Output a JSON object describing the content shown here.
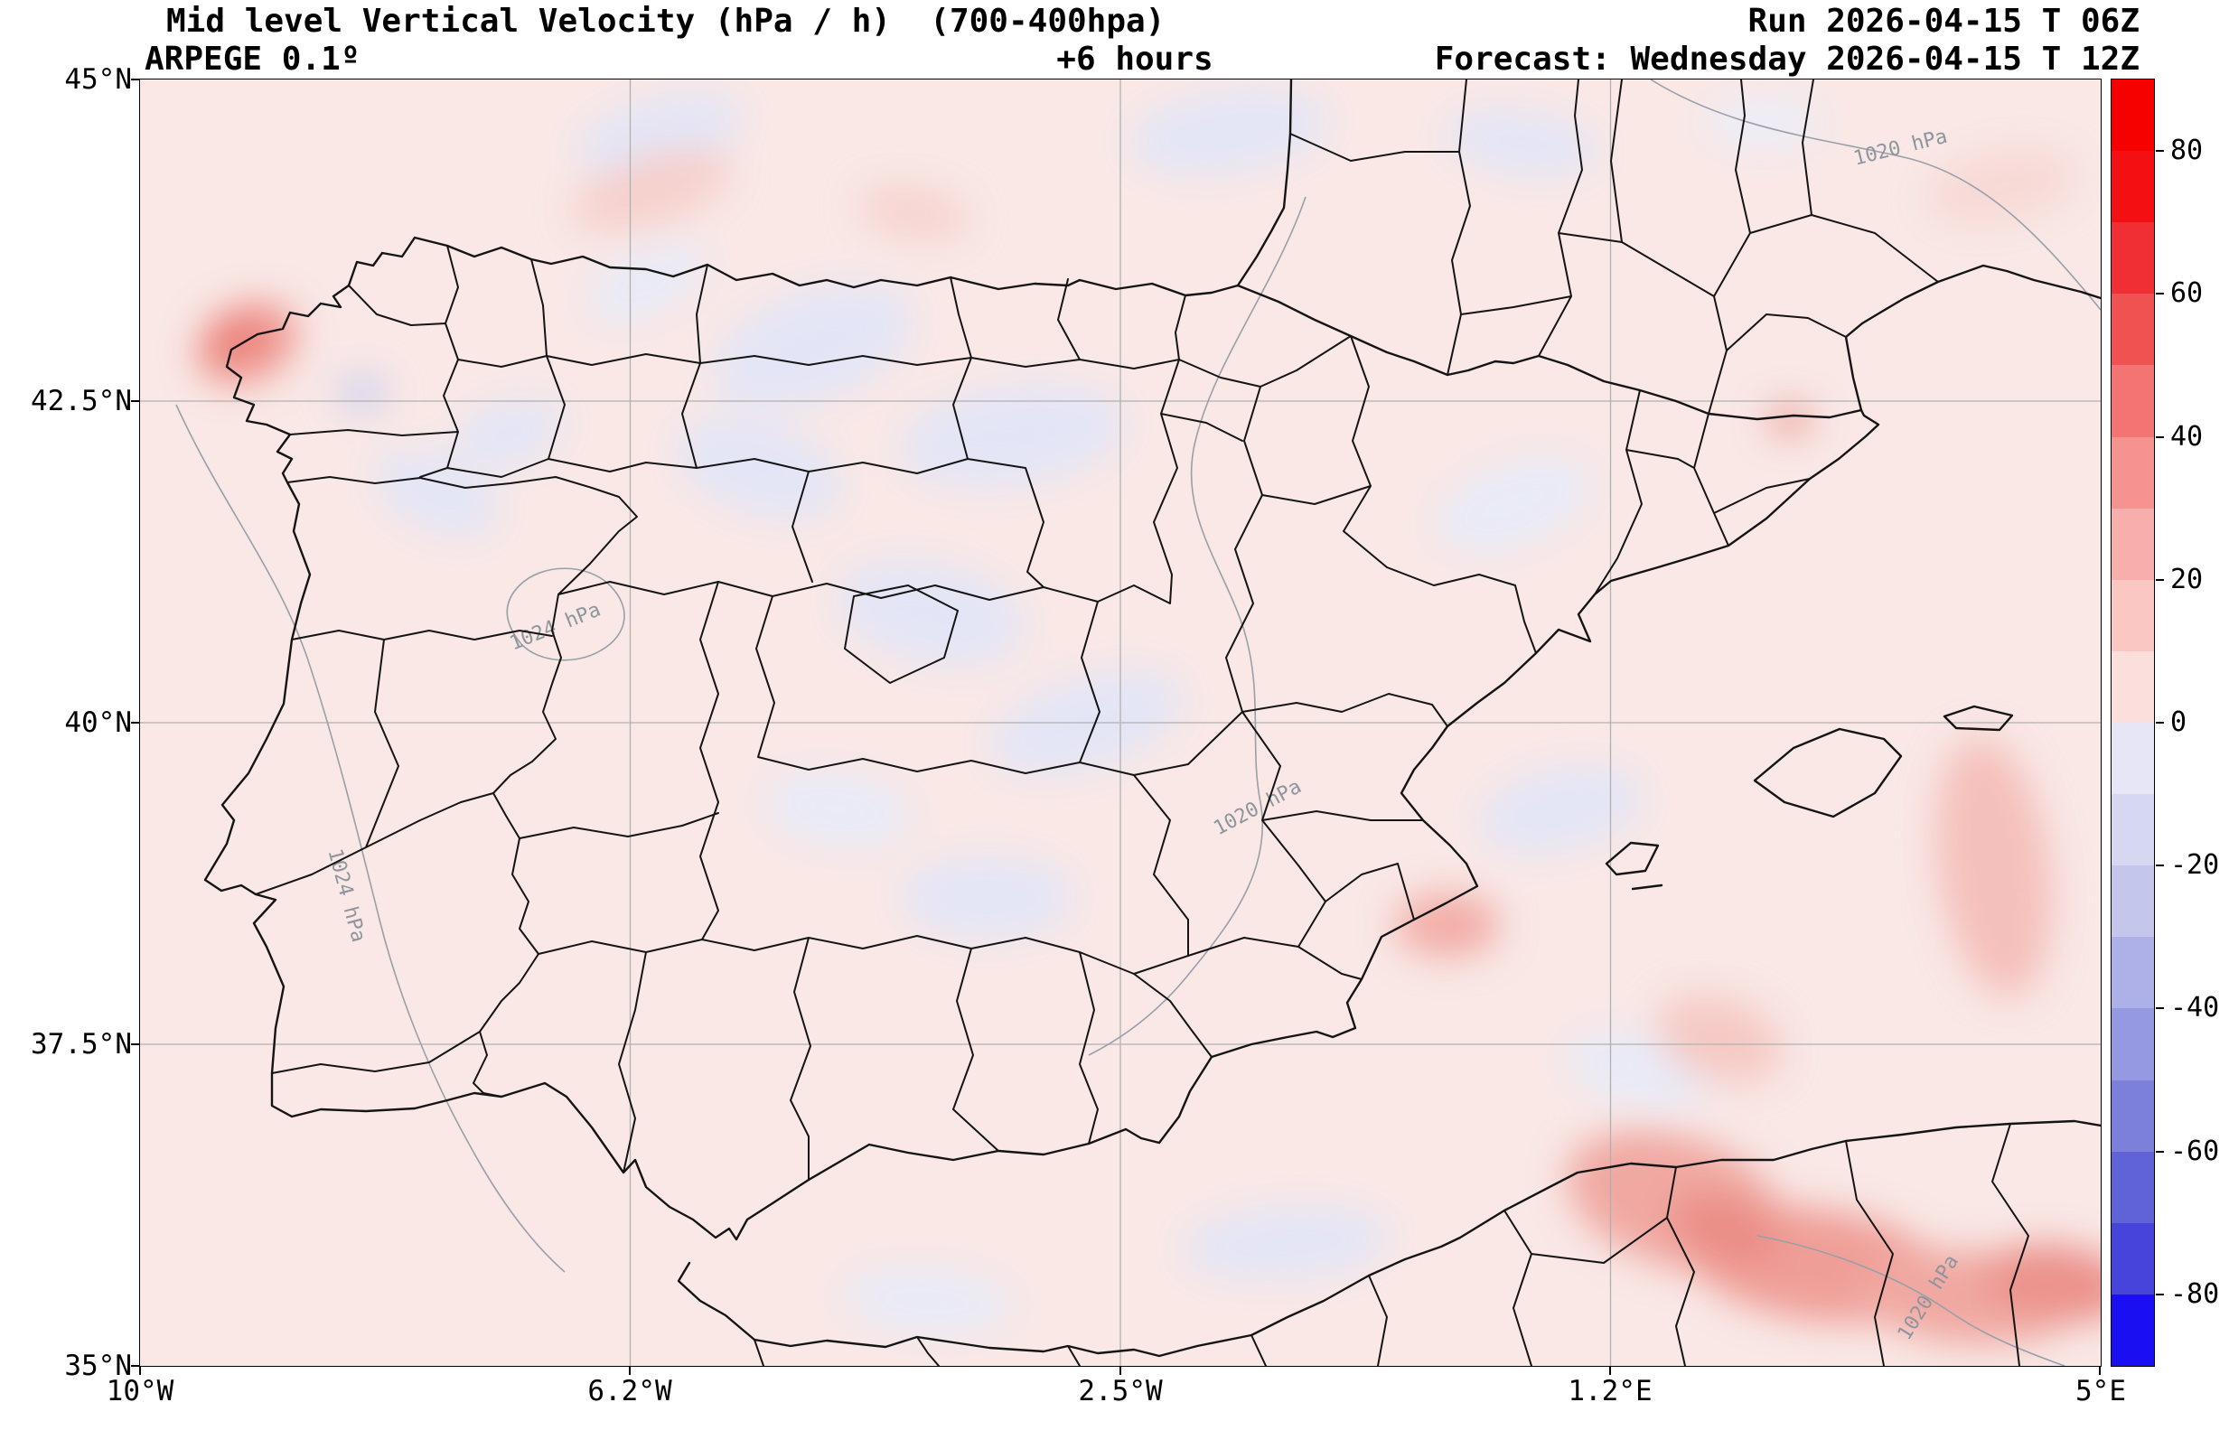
{
  "header": {
    "title": "Mid level Vertical Velocity (hPa / h)  (700-400hpa)",
    "model": "ARPEGE 0.1º",
    "lead_time": "+6 hours",
    "run": "Run 2026-04-15 T 06Z",
    "valid": "Forecast: Wednesday 2026-04-15 T 12Z"
  },
  "axes": {
    "x_ticks": [
      "10°W",
      "6.2°W",
      "2.5°W",
      "1.2°E",
      "5°E"
    ],
    "y_ticks": [
      "45°N",
      "42.5°N",
      "40°N",
      "37.5°N",
      "35°N"
    ]
  },
  "colorbar": {
    "tick_labels": [
      "80",
      "60",
      "40",
      "20",
      "0",
      "-20",
      "-40",
      "-60",
      "-80"
    ],
    "tick_values": [
      80,
      60,
      40,
      20,
      0,
      -20,
      -40,
      -60,
      -80
    ],
    "value_range": [
      -90,
      90
    ],
    "segments_top_to_bottom": [
      "#f70000",
      "#f40f12",
      "#ef2f33",
      "#f05252",
      "#f37472",
      "#f59390",
      "#f8aeaa",
      "#fac7c3",
      "#fbdfdc",
      "#e6e6f7",
      "#d6d7f1",
      "#c4c6ec",
      "#adb1e7",
      "#9599e1",
      "#7c80db",
      "#6063d6",
      "#4644da",
      "#1a0ef3"
    ]
  },
  "isobars": {
    "labels": [
      "1020 hPa",
      "1024 hPa",
      "1020 hPa",
      "1024 hPa",
      "1020 hPa"
    ]
  },
  "colors": {
    "field_background": "#f9e8e6",
    "negative_shading": "#e3e5f6",
    "positive_shading": "#f5d0cc",
    "strong_positive": "#ee938d",
    "boundary": "#141414",
    "isobar_line": "#98a0aa",
    "graticule": "#b0b0b0"
  }
}
